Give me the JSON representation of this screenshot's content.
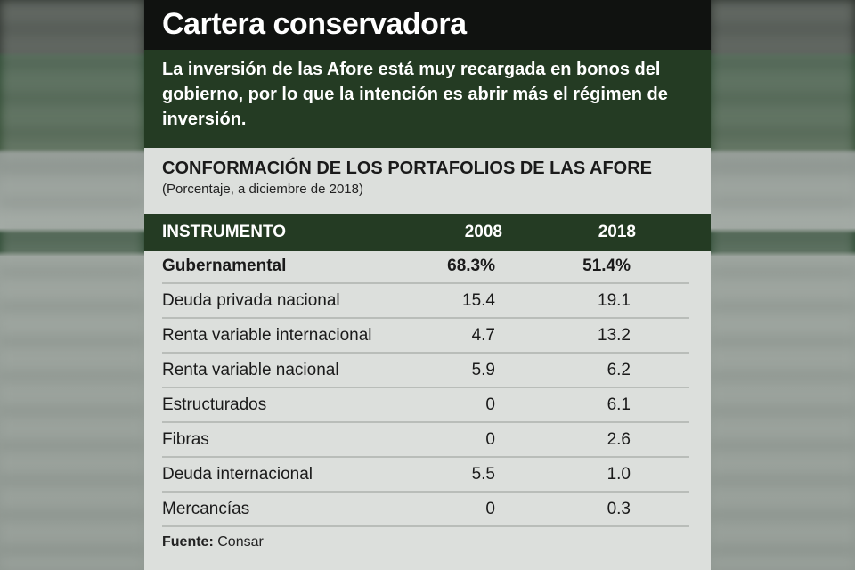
{
  "title": "Cartera conservadora",
  "intro": "La inversión de las Afore está muy recargada en bonos del gobierno, por lo que la intención es abrir más el régimen de inversión.",
  "table": {
    "title": "CONFORMACIÓN DE LOS PORTAFOLIOS DE LAS AFORE",
    "subtitle": "(Porcentaje, a diciembre de 2018)",
    "headers": [
      "INSTRUMENTO",
      "2008",
      "2018"
    ],
    "rows": [
      [
        "Gubernamental",
        "68.3%",
        "51.4%"
      ],
      [
        "Deuda privada nacional",
        "15.4",
        "19.1"
      ],
      [
        "Renta variable internacional",
        "4.7",
        "13.2"
      ],
      [
        "Renta variable nacional",
        "5.9",
        "6.2"
      ],
      [
        "Estructurados",
        "0",
        "6.1"
      ],
      [
        "Fibras",
        "0",
        "2.6"
      ],
      [
        "Deuda internacional",
        "5.5",
        "1.0"
      ],
      [
        "Mercancías",
        "0",
        "0.3"
      ]
    ]
  },
  "source": {
    "label": "Fuente:",
    "value": "Consar"
  }
}
